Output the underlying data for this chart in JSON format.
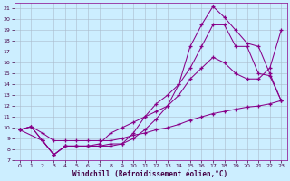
{
  "background_color": "#cceeff",
  "line_color": "#880088",
  "grid_color": "#aabbcc",
  "xlabel": "Windchill (Refroidissement éolien,°C)",
  "xlim": [
    -0.5,
    23.5
  ],
  "ylim": [
    7,
    21.5
  ],
  "xticks": [
    0,
    1,
    2,
    3,
    4,
    5,
    6,
    7,
    8,
    9,
    10,
    11,
    12,
    13,
    14,
    15,
    16,
    17,
    18,
    19,
    20,
    21,
    22,
    23
  ],
  "yticks": [
    7,
    8,
    9,
    10,
    11,
    12,
    13,
    14,
    15,
    16,
    17,
    18,
    19,
    20,
    21
  ],
  "series": [
    {
      "x": [
        0,
        1,
        2,
        3,
        4,
        5,
        6,
        7,
        8,
        9,
        10,
        11,
        12,
        13,
        14,
        15,
        16,
        17,
        18,
        19,
        20,
        21,
        22,
        23
      ],
      "y": [
        9.8,
        10.1,
        8.8,
        7.5,
        8.3,
        8.3,
        8.3,
        8.3,
        8.3,
        8.5,
        9.0,
        9.8,
        10.8,
        12.0,
        14.0,
        17.5,
        19.5,
        21.2,
        20.2,
        19.0,
        17.8,
        17.5,
        15.0,
        12.5
      ]
    },
    {
      "x": [
        0,
        2,
        3,
        4,
        5,
        6,
        7,
        8,
        9,
        10,
        11,
        12,
        13,
        14,
        15,
        16,
        17,
        18,
        19,
        20,
        21,
        22,
        23
      ],
      "y": [
        9.8,
        8.8,
        7.5,
        8.3,
        8.3,
        8.3,
        8.3,
        8.5,
        8.5,
        9.5,
        11.0,
        12.2,
        13.0,
        14.0,
        15.5,
        17.5,
        19.5,
        19.5,
        17.5,
        17.5,
        15.0,
        14.8,
        12.5
      ]
    },
    {
      "x": [
        0,
        1,
        2,
        3,
        4,
        5,
        6,
        7,
        8,
        9,
        10,
        11,
        12,
        13,
        14,
        15,
        16,
        17,
        18,
        19,
        20,
        21,
        22,
        23
      ],
      "y": [
        9.8,
        10.1,
        8.8,
        7.5,
        8.3,
        8.3,
        8.3,
        8.5,
        9.5,
        10.0,
        10.5,
        11.0,
        11.5,
        12.0,
        13.0,
        14.5,
        15.5,
        16.5,
        16.0,
        15.0,
        14.5,
        14.5,
        15.5,
        19.0
      ]
    },
    {
      "x": [
        0,
        1,
        2,
        3,
        4,
        5,
        6,
        7,
        8,
        9,
        10,
        11,
        12,
        13,
        14,
        15,
        16,
        17,
        18,
        19,
        20,
        21,
        22,
        23
      ],
      "y": [
        9.8,
        10.1,
        9.5,
        8.8,
        8.8,
        8.8,
        8.8,
        8.8,
        8.8,
        9.0,
        9.3,
        9.5,
        9.8,
        10.0,
        10.3,
        10.7,
        11.0,
        11.3,
        11.5,
        11.7,
        11.9,
        12.0,
        12.2,
        12.5
      ]
    }
  ]
}
